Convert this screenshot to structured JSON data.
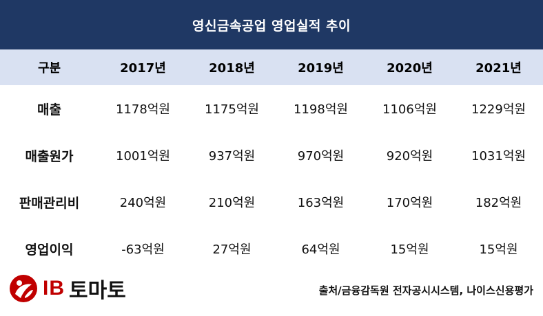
{
  "title": "영신금속공업 영업실적 추이",
  "table": {
    "headers": [
      "구분",
      "2017년",
      "2018년",
      "2019년",
      "2020년",
      "2021년"
    ],
    "rows": [
      {
        "label": "매출",
        "values": [
          "1178억원",
          "1175억원",
          "1198억원",
          "1106억원",
          "1229억원"
        ]
      },
      {
        "label": "매출원가",
        "values": [
          "1001억원",
          "937억원",
          "970억원",
          "920억원",
          "1031억원"
        ]
      },
      {
        "label": "판매관리비",
        "values": [
          "240억원",
          "210억원",
          "163억원",
          "170억원",
          "182억원"
        ]
      },
      {
        "label": "영업이익",
        "values": [
          "-63억원",
          "27억원",
          "64억원",
          "15억원",
          "15억원"
        ]
      }
    ]
  },
  "footer": {
    "logo_ib": "IB",
    "logo_name": "토마토",
    "source": "출처/금융감독원 전자공시시스템, 나이스신용평가"
  },
  "colors": {
    "title_bg": "#1f3864",
    "header_bg": "#d9e1f2",
    "logo_red": "#c00000"
  }
}
